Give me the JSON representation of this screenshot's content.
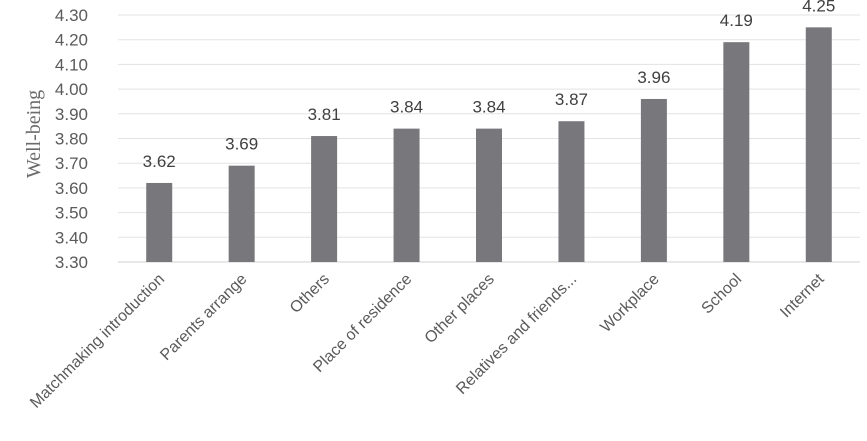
{
  "chart_data": {
    "type": "bar",
    "title": "",
    "xlabel": "",
    "ylabel": "Well-being",
    "ylim": [
      3.3,
      4.3
    ],
    "yticks": [
      "3.30",
      "3.40",
      "3.50",
      "3.60",
      "3.70",
      "3.80",
      "3.90",
      "4.00",
      "4.10",
      "4.20",
      "4.30"
    ],
    "grid": true,
    "legend": "none",
    "bar_color": "#78787c",
    "categories": [
      "Matchmaking introduction",
      "Parents arrange",
      "Others",
      "Place of residence",
      "Other places",
      "Relatives and friends...",
      "Workplace",
      "School",
      "Internet"
    ],
    "values": [
      3.62,
      3.69,
      3.81,
      3.84,
      3.84,
      3.87,
      3.96,
      4.19,
      4.25
    ],
    "value_labels": [
      "3.62",
      "3.69",
      "3.81",
      "3.84",
      "3.84",
      "3.87",
      "3.96",
      "4.19",
      "4.25"
    ]
  }
}
